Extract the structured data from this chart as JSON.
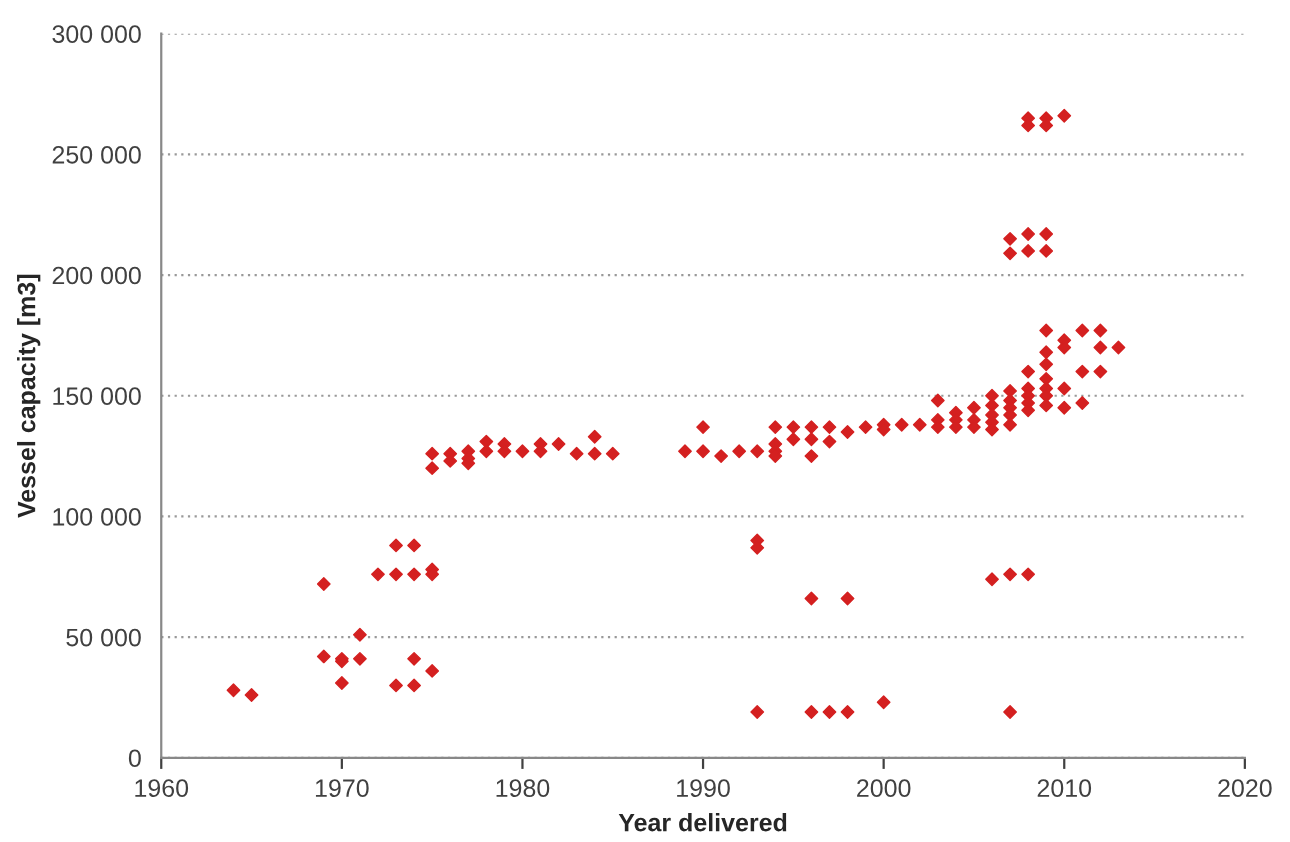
{
  "chart_data": {
    "type": "scatter",
    "xlabel": "Year delivered",
    "ylabel": "Vessel capacity [m3]",
    "marker": "diamond",
    "grid": "y",
    "xlim": [
      1960,
      2020
    ],
    "xticks": [
      1960,
      1970,
      1980,
      1990,
      2000,
      2010,
      2020
    ],
    "ylim": [
      0,
      300000
    ],
    "yticks": [
      {
        "value": 0,
        "label": "0"
      },
      {
        "value": 50000,
        "label": "50 000"
      },
      {
        "value": 100000,
        "label": "100 000"
      },
      {
        "value": 150000,
        "label": "150 000"
      },
      {
        "value": 200000,
        "label": "200 000"
      },
      {
        "value": 250000,
        "label": "250 000"
      },
      {
        "value": 300000,
        "label": "300 000"
      }
    ],
    "series": [
      {
        "color": "#d42020",
        "x": [
          1964,
          1965,
          1969,
          1969,
          1970,
          1970,
          1970,
          1971,
          1971,
          1972,
          1973,
          1973,
          1973,
          1974,
          1974,
          1974,
          1974,
          1975,
          1975,
          1975,
          1975,
          1975,
          1976,
          1976,
          1977,
          1977,
          1977,
          1978,
          1978,
          1979,
          1979,
          1980,
          1981,
          1981,
          1982,
          1983,
          1984,
          1984,
          1985,
          1989,
          1990,
          1990,
          1991,
          1992,
          1993,
          1993,
          1993,
          1993,
          1994,
          1994,
          1994,
          1994,
          1995,
          1995,
          1996,
          1996,
          1996,
          1996,
          1996,
          1997,
          1997,
          1997,
          1998,
          1998,
          1998,
          1999,
          2000,
          2000,
          2000,
          2001,
          2002,
          2003,
          2003,
          2003,
          2004,
          2004,
          2004,
          2005,
          2005,
          2005,
          2006,
          2006,
          2006,
          2006,
          2006,
          2006,
          2007,
          2007,
          2007,
          2007,
          2007,
          2007,
          2007,
          2007,
          2007,
          2008,
          2008,
          2008,
          2008,
          2008,
          2008,
          2008,
          2008,
          2008,
          2008,
          2009,
          2009,
          2009,
          2009,
          2009,
          2009,
          2009,
          2009,
          2009,
          2009,
          2009,
          2010,
          2010,
          2010,
          2010,
          2010,
          2011,
          2011,
          2011,
          2012,
          2012,
          2012,
          2013
        ],
        "values": [
          28000,
          26000,
          72000,
          42000,
          41000,
          40000,
          31000,
          51000,
          41000,
          76000,
          88000,
          76000,
          30000,
          88000,
          76000,
          41000,
          30000,
          78000,
          76000,
          36000,
          126000,
          120000,
          126000,
          123000,
          127000,
          124000,
          122000,
          131000,
          127000,
          130000,
          127000,
          127000,
          130000,
          127000,
          130000,
          126000,
          133000,
          126000,
          126000,
          127000,
          137000,
          127000,
          125000,
          127000,
          127000,
          90000,
          87000,
          19000,
          137000,
          130000,
          127000,
          125000,
          137000,
          132000,
          137000,
          132000,
          125000,
          66000,
          19000,
          137000,
          131000,
          19000,
          135000,
          66000,
          19000,
          137000,
          138000,
          136000,
          23000,
          138000,
          138000,
          148000,
          140000,
          137000,
          143000,
          140000,
          137000,
          145000,
          140000,
          137000,
          150000,
          146000,
          142000,
          139000,
          136000,
          74000,
          215000,
          209000,
          152000,
          148000,
          145000,
          142000,
          138000,
          76000,
          19000,
          265000,
          262000,
          217000,
          210000,
          160000,
          153000,
          150000,
          147000,
          144000,
          76000,
          265000,
          262000,
          217000,
          210000,
          177000,
          168000,
          163000,
          157000,
          153000,
          150000,
          146000,
          266000,
          173000,
          170000,
          153000,
          145000,
          177000,
          160000,
          147000,
          177000,
          170000,
          160000,
          170000
        ]
      }
    ]
  }
}
